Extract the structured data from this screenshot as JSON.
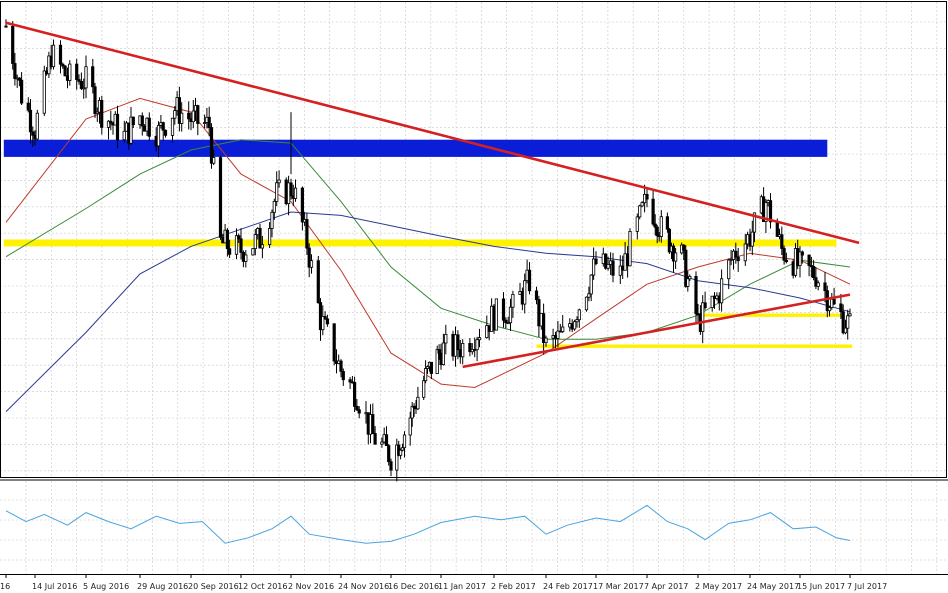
{
  "chart_data": {
    "type": "candlestick",
    "grid": true,
    "colors": {
      "background": "#ffffff",
      "grid": "#c8c8c8",
      "candle": "#000000",
      "ma_red": "#c0392b",
      "ma_green": "#3a8a3a",
      "ma_blue": "#2a3a8f",
      "oscillator": "#4aa3df",
      "trendline": "#d42020",
      "zone_blue": "#0a1ed8",
      "zone_yellow": "#fff200"
    },
    "x_axis": {
      "type": "date",
      "range": [
        "2016-06-30",
        "2017-07-11"
      ],
      "tick_labels": [
        {
          "label": "16",
          "date": "2016-07-01"
        },
        {
          "label": "14 Jul 2016",
          "date": "2016-07-14"
        },
        {
          "label": "5 Aug 2016",
          "date": "2016-08-05"
        },
        {
          "label": "29 Aug 2016",
          "date": "2016-08-29"
        },
        {
          "label": "20 Sep 2016",
          "date": "2016-09-20"
        },
        {
          "label": "12 Oct 2016",
          "date": "2016-10-12"
        },
        {
          "label": "2 Nov 2016",
          "date": "2016-11-02"
        },
        {
          "label": "24 Nov 2016",
          "date": "2016-11-24"
        },
        {
          "label": "16 Dec 2016",
          "date": "2016-12-16"
        },
        {
          "label": "11 Jan 2017",
          "date": "2017-01-11"
        },
        {
          "label": "2 Feb 2017",
          "date": "2017-02-02"
        },
        {
          "label": "24 Feb 2017",
          "date": "2017-02-24"
        },
        {
          "label": "17 Mar 2017",
          "date": "2017-03-17"
        },
        {
          "label": "7 Apr 2017",
          "date": "2017-04-07"
        },
        {
          "label": "2 May 2017",
          "date": "2017-05-02"
        },
        {
          "label": "24 May 2017",
          "date": "2017-05-24"
        },
        {
          "label": "15 Jun 2017",
          "date": "2017-06-15"
        },
        {
          "label": "7 Jul 2017",
          "date": "2017-07-07"
        }
      ]
    },
    "price_series": [
      {
        "date": "2016-07-01",
        "value": 9.5
      },
      {
        "date": "2016-07-08",
        "value": 7.5
      },
      {
        "date": "2016-07-14",
        "value": 6.5
      },
      {
        "date": "2016-07-21",
        "value": 8.7
      },
      {
        "date": "2016-07-28",
        "value": 8.0
      },
      {
        "date": "2016-08-05",
        "value": 7.9
      },
      {
        "date": "2016-08-12",
        "value": 7.0
      },
      {
        "date": "2016-08-22",
        "value": 6.3
      },
      {
        "date": "2016-08-29",
        "value": 6.9
      },
      {
        "date": "2016-09-06",
        "value": 6.4
      },
      {
        "date": "2016-09-13",
        "value": 7.1
      },
      {
        "date": "2016-09-20",
        "value": 6.8
      },
      {
        "date": "2016-09-28",
        "value": 6.6
      },
      {
        "date": "2016-10-03",
        "value": 3.2
      },
      {
        "date": "2016-10-12",
        "value": 3.0
      },
      {
        "date": "2016-10-20",
        "value": 3.3
      },
      {
        "date": "2016-10-27",
        "value": 4.6
      },
      {
        "date": "2016-11-03",
        "value": 4.8
      },
      {
        "date": "2016-11-09",
        "value": 3.2
      },
      {
        "date": "2016-11-15",
        "value": 1.0
      },
      {
        "date": "2016-11-24",
        "value": -0.5
      },
      {
        "date": "2016-12-01",
        "value": -1.2
      },
      {
        "date": "2016-12-08",
        "value": -2.4
      },
      {
        "date": "2016-12-16",
        "value": -3.0
      },
      {
        "date": "2016-12-23",
        "value": -2.3
      },
      {
        "date": "2017-01-02",
        "value": -0.8
      },
      {
        "date": "2017-01-11",
        "value": 0.1
      },
      {
        "date": "2017-01-20",
        "value": 0.2
      },
      {
        "date": "2017-02-02",
        "value": 1.1
      },
      {
        "date": "2017-02-10",
        "value": 1.3
      },
      {
        "date": "2017-02-17",
        "value": 2.1
      },
      {
        "date": "2017-02-24",
        "value": 0.2
      },
      {
        "date": "2017-03-03",
        "value": 0.5
      },
      {
        "date": "2017-03-10",
        "value": 1.4
      },
      {
        "date": "2017-03-17",
        "value": 2.6
      },
      {
        "date": "2017-03-27",
        "value": 2.3
      },
      {
        "date": "2017-04-07",
        "value": 4.5
      },
      {
        "date": "2017-04-14",
        "value": 3.6
      },
      {
        "date": "2017-04-24",
        "value": 2.8
      },
      {
        "date": "2017-05-02",
        "value": 0.9
      },
      {
        "date": "2017-05-10",
        "value": 1.6
      },
      {
        "date": "2017-05-17",
        "value": 2.9
      },
      {
        "date": "2017-05-24",
        "value": 3.4
      },
      {
        "date": "2017-05-31",
        "value": 4.4
      },
      {
        "date": "2017-06-07",
        "value": 3.0
      },
      {
        "date": "2017-06-15",
        "value": 2.5
      },
      {
        "date": "2017-06-22",
        "value": 2.3
      },
      {
        "date": "2017-06-30",
        "value": 1.3
      },
      {
        "date": "2017-07-07",
        "value": 0.8
      }
    ],
    "moving_averages": [
      {
        "color": "red",
        "points": [
          {
            "date": "2016-07-01",
            "value": 3.8
          },
          {
            "date": "2016-08-05",
            "value": 6.8
          },
          {
            "date": "2016-08-29",
            "value": 7.4
          },
          {
            "date": "2016-09-20",
            "value": 7.0
          },
          {
            "date": "2016-10-12",
            "value": 5.2
          },
          {
            "date": "2016-11-02",
            "value": 4.4
          },
          {
            "date": "2016-11-24",
            "value": 2.4
          },
          {
            "date": "2016-12-16",
            "value": 0.0
          },
          {
            "date": "2017-01-11",
            "value": -0.9
          },
          {
            "date": "2017-01-25",
            "value": -1.0
          },
          {
            "date": "2017-02-24",
            "value": 0.0
          },
          {
            "date": "2017-03-17",
            "value": 1.0
          },
          {
            "date": "2017-04-07",
            "value": 2.0
          },
          {
            "date": "2017-05-02",
            "value": 2.5
          },
          {
            "date": "2017-05-24",
            "value": 2.9
          },
          {
            "date": "2017-06-15",
            "value": 2.7
          },
          {
            "date": "2017-07-07",
            "value": 2.0
          }
        ]
      },
      {
        "color": "green",
        "points": [
          {
            "date": "2016-07-01",
            "value": 2.8
          },
          {
            "date": "2016-08-05",
            "value": 4.2
          },
          {
            "date": "2016-08-29",
            "value": 5.2
          },
          {
            "date": "2016-09-20",
            "value": 5.9
          },
          {
            "date": "2016-10-12",
            "value": 6.2
          },
          {
            "date": "2016-11-02",
            "value": 6.1
          },
          {
            "date": "2016-11-24",
            "value": 4.4
          },
          {
            "date": "2016-12-16",
            "value": 2.5
          },
          {
            "date": "2017-01-11",
            "value": 1.3
          },
          {
            "date": "2017-02-02",
            "value": 0.8
          },
          {
            "date": "2017-02-24",
            "value": 0.4
          },
          {
            "date": "2017-03-17",
            "value": 0.4
          },
          {
            "date": "2017-04-07",
            "value": 0.6
          },
          {
            "date": "2017-05-02",
            "value": 1.1
          },
          {
            "date": "2017-05-24",
            "value": 2.0
          },
          {
            "date": "2017-06-15",
            "value": 2.7
          },
          {
            "date": "2017-07-07",
            "value": 2.5
          }
        ]
      },
      {
        "color": "blue",
        "points": [
          {
            "date": "2016-07-01",
            "value": -1.7
          },
          {
            "date": "2016-08-05",
            "value": 0.6
          },
          {
            "date": "2016-08-29",
            "value": 2.3
          },
          {
            "date": "2016-09-20",
            "value": 3.1
          },
          {
            "date": "2016-10-12",
            "value": 3.6
          },
          {
            "date": "2016-11-02",
            "value": 4.1
          },
          {
            "date": "2016-11-24",
            "value": 4.0
          },
          {
            "date": "2016-12-16",
            "value": 3.7
          },
          {
            "date": "2017-01-11",
            "value": 3.4
          },
          {
            "date": "2017-02-02",
            "value": 3.1
          },
          {
            "date": "2017-02-24",
            "value": 2.9
          },
          {
            "date": "2017-03-17",
            "value": 2.8
          },
          {
            "date": "2017-04-07",
            "value": 2.6
          },
          {
            "date": "2017-05-02",
            "value": 2.1
          },
          {
            "date": "2017-05-24",
            "value": 1.9
          },
          {
            "date": "2017-06-15",
            "value": 1.6
          },
          {
            "date": "2017-07-07",
            "value": 1.2
          }
        ]
      }
    ],
    "trendlines": [
      {
        "color": "red",
        "from": {
          "date": "2016-07-01",
          "value": 9.6
        },
        "to": {
          "date": "2017-07-11",
          "value": 3.2
        }
      },
      {
        "color": "red",
        "from": {
          "date": "2017-01-20",
          "value": -0.4
        },
        "to": {
          "date": "2017-07-07",
          "value": 1.7
        }
      }
    ],
    "zones": [
      {
        "color": "blue",
        "from_date": "2016-06-30",
        "to_date": "2017-06-27",
        "low": 5.7,
        "high": 6.2
      },
      {
        "color": "yellow",
        "from_date": "2016-06-30",
        "to_date": "2017-07-01",
        "low": 3.1,
        "high": 3.3
      },
      {
        "color": "yellow",
        "from_date": "2017-05-02",
        "to_date": "2017-07-03",
        "low": 1.05,
        "high": 1.15
      },
      {
        "color": "yellow",
        "from_date": "2017-02-20",
        "to_date": "2017-07-08",
        "low": 0.15,
        "high": 0.25
      }
    ],
    "oscillator": [
      {
        "date": "2016-07-01",
        "value": 68
      },
      {
        "date": "2016-07-10",
        "value": 56
      },
      {
        "date": "2016-07-18",
        "value": 64
      },
      {
        "date": "2016-07-28",
        "value": 52
      },
      {
        "date": "2016-08-05",
        "value": 66
      },
      {
        "date": "2016-08-15",
        "value": 56
      },
      {
        "date": "2016-08-25",
        "value": 48
      },
      {
        "date": "2016-09-05",
        "value": 62
      },
      {
        "date": "2016-09-15",
        "value": 54
      },
      {
        "date": "2016-09-25",
        "value": 56
      },
      {
        "date": "2016-10-05",
        "value": 32
      },
      {
        "date": "2016-10-15",
        "value": 38
      },
      {
        "date": "2016-10-25",
        "value": 48
      },
      {
        "date": "2016-11-02",
        "value": 62
      },
      {
        "date": "2016-11-10",
        "value": 42
      },
      {
        "date": "2016-11-24",
        "value": 36
      },
      {
        "date": "2016-12-05",
        "value": 32
      },
      {
        "date": "2016-12-16",
        "value": 34
      },
      {
        "date": "2016-12-28",
        "value": 42
      },
      {
        "date": "2017-01-11",
        "value": 55
      },
      {
        "date": "2017-01-25",
        "value": 62
      },
      {
        "date": "2017-02-05",
        "value": 58
      },
      {
        "date": "2017-02-15",
        "value": 62
      },
      {
        "date": "2017-02-24",
        "value": 42
      },
      {
        "date": "2017-03-05",
        "value": 52
      },
      {
        "date": "2017-03-17",
        "value": 60
      },
      {
        "date": "2017-03-27",
        "value": 56
      },
      {
        "date": "2017-04-07",
        "value": 74
      },
      {
        "date": "2017-04-17",
        "value": 56
      },
      {
        "date": "2017-04-27",
        "value": 48
      },
      {
        "date": "2017-05-05",
        "value": 36
      },
      {
        "date": "2017-05-15",
        "value": 54
      },
      {
        "date": "2017-05-24",
        "value": 58
      },
      {
        "date": "2017-06-02",
        "value": 66
      },
      {
        "date": "2017-06-12",
        "value": 48
      },
      {
        "date": "2017-06-22",
        "value": 50
      },
      {
        "date": "2017-07-01",
        "value": 38
      },
      {
        "date": "2017-07-07",
        "value": 35
      }
    ],
    "oscillator_range": [
      0,
      100
    ],
    "price_range": [
      -3.6,
      10.2
    ]
  }
}
